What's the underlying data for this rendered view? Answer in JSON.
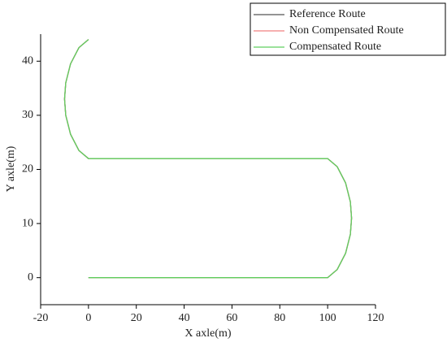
{
  "chart_data": {
    "type": "line",
    "x_label": "X axle(m)",
    "y_label": "Y axle(m)",
    "x": [
      0,
      50,
      100,
      104,
      107.5,
      109.5,
      110,
      109.5,
      107.5,
      104,
      100,
      50,
      0,
      -4,
      -7.5,
      -9.5,
      -10,
      -9.5,
      -7.5,
      -4,
      0
    ],
    "series": [
      {
        "name": "Reference Route",
        "color": "#555555",
        "values": [
          0,
          0,
          0,
          1.5,
          4.5,
          8,
          11,
          14,
          17.5,
          20.5,
          22,
          22,
          22,
          23.5,
          26.5,
          30,
          33,
          36,
          39.5,
          42.5,
          44
        ]
      },
      {
        "name": "Non Compensated Route",
        "color": "#f08080",
        "values": [
          0,
          0,
          0,
          1.5,
          4.5,
          8,
          11,
          14,
          17.5,
          20.5,
          22,
          22,
          22,
          23.5,
          26.5,
          30,
          33,
          36,
          39.5,
          42.5,
          44
        ]
      },
      {
        "name": "Compensated Route",
        "color": "#5fcf5f",
        "values": [
          0,
          0,
          0,
          1.5,
          4.5,
          8,
          11,
          14,
          17.5,
          20.5,
          22,
          22,
          22,
          23.5,
          26.5,
          30,
          33,
          36,
          39.5,
          42.5,
          44
        ]
      }
    ],
    "xlim": [
      -20,
      120
    ],
    "xticks": [
      -20,
      0,
      20,
      40,
      60,
      80,
      100,
      120
    ],
    "ylim": [
      -5,
      45
    ],
    "yticks": [
      0,
      10,
      20,
      30,
      40
    ],
    "legend": "upper-right"
  }
}
